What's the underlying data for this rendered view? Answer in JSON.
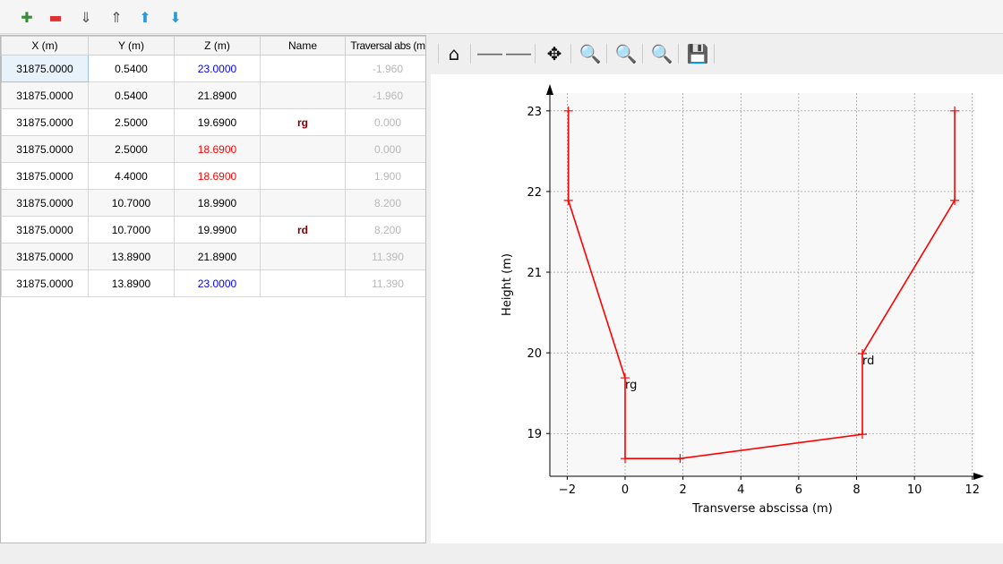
{
  "toolbar": {
    "buttons": [
      {
        "name": "add-row-button",
        "icon": "plus-icon",
        "glyph": "✚",
        "color": "#3a8a3a"
      },
      {
        "name": "remove-row-button",
        "icon": "minus-icon",
        "glyph": "▬",
        "color": "#e03030"
      },
      {
        "name": "sort-ascending-button",
        "icon": "sort-ascending-icon",
        "glyph": "⇓",
        "color": "#555"
      },
      {
        "name": "sort-descending-button",
        "icon": "sort-descending-icon",
        "glyph": "⇑",
        "color": "#555"
      },
      {
        "name": "move-up-button",
        "icon": "arrow-up-icon",
        "glyph": "⬆",
        "color": "#2a9ad8"
      },
      {
        "name": "move-down-button",
        "icon": "arrow-down-icon",
        "glyph": "⬇",
        "color": "#2a9ad8"
      }
    ]
  },
  "table": {
    "headers": [
      "X (m)",
      "Y (m)",
      "Z (m)",
      "Name",
      "Traversal abs (m"
    ],
    "rows": [
      [
        "31875.0000",
        "0.5400",
        "23.0000",
        "",
        "-1.960",
        "#0000ff"
      ],
      [
        "31875.0000",
        "0.5400",
        "21.8900",
        "",
        "-1.960",
        ""
      ],
      [
        "31875.0000",
        "2.5000",
        "19.6900",
        "rg",
        "0.000",
        ""
      ],
      [
        "31875.0000",
        "2.5000",
        "18.6900",
        "",
        "0.000",
        "#ff0000"
      ],
      [
        "31875.0000",
        "4.4000",
        "18.6900",
        "",
        "1.900",
        "#ff0000"
      ],
      [
        "31875.0000",
        "10.7000",
        "18.9900",
        "",
        "8.200",
        ""
      ],
      [
        "31875.0000",
        "10.7000",
        "19.9900",
        "rd",
        "8.200",
        ""
      ],
      [
        "31875.0000",
        "13.8900",
        "21.8900",
        "",
        "11.390",
        ""
      ],
      [
        "31875.0000",
        "13.8900",
        "23.0000",
        "",
        "11.390",
        "#0000ff"
      ]
    ]
  },
  "plot_toolbar": [
    {
      "name": "home-button",
      "icon": "home-icon",
      "glyph": "⌂"
    },
    {
      "name": "back-button",
      "icon": "arrow-left-icon",
      "glyph": "🡐"
    },
    {
      "name": "forward-button",
      "icon": "arrow-right-icon",
      "glyph": "🡒"
    },
    {
      "name": "pan-button",
      "icon": "move-icon",
      "glyph": "✥"
    },
    {
      "name": "zoom-button",
      "icon": "magnifier-icon",
      "glyph": "🔍"
    },
    {
      "name": "zoom-info-button",
      "icon": "magnifier-info-icon",
      "glyph": "🔍"
    },
    {
      "name": "zoom-fit-button",
      "icon": "magnifier-fit-icon",
      "glyph": "🔍"
    },
    {
      "name": "save-button",
      "icon": "floppy-disk-icon",
      "glyph": "💾"
    }
  ],
  "chart_data": {
    "type": "line",
    "xlabel": "Transverse abscissa (m)",
    "ylabel": "Height (m)",
    "xlim": [
      -2.6,
      12.1
    ],
    "ylim": [
      18.47,
      23.22
    ],
    "grid": true,
    "color": "#ff0000",
    "xticks": [
      -2,
      0,
      2,
      4,
      6,
      8,
      10,
      12
    ],
    "xtick_labels": [
      "−2",
      "0",
      "2",
      "4",
      "6",
      "8",
      "10",
      "12"
    ],
    "yticks": [
      19,
      20,
      21,
      22,
      23
    ],
    "x": [
      -1.96,
      -1.96,
      0,
      0,
      1.9,
      8.2,
      8.2,
      11.39,
      11.39
    ],
    "y": [
      23,
      21.89,
      19.69,
      18.69,
      18.69,
      18.99,
      19.99,
      21.89,
      23
    ],
    "annotations": [
      {
        "text": "rg",
        "x": 0,
        "y": 19.69
      },
      {
        "text": "rd",
        "x": 8.2,
        "y": 19.99
      }
    ]
  }
}
